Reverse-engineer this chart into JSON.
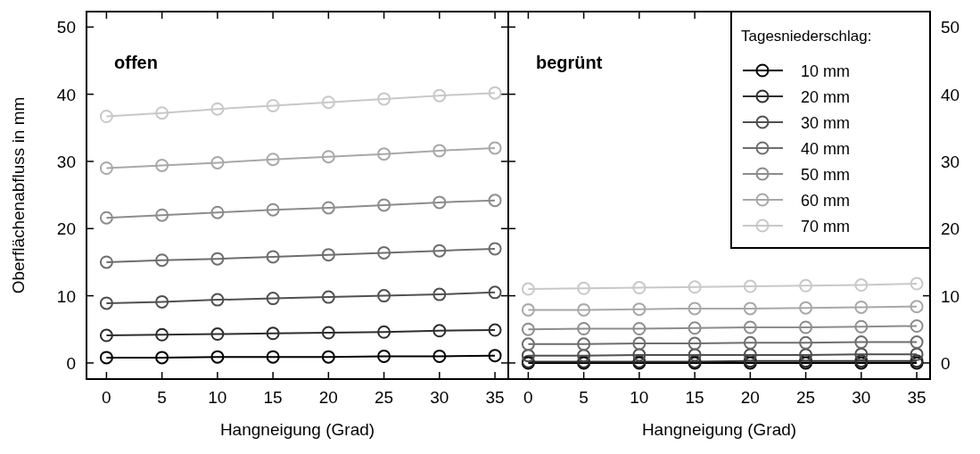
{
  "chart_data": [
    {
      "type": "line",
      "title": "offen",
      "xlabel": "Hangneigung (Grad)",
      "ylabel": "Oberflächenabfluss in mm",
      "x": [
        0,
        5,
        10,
        15,
        20,
        25,
        30,
        35
      ],
      "xlim": [
        -1.8,
        36.2
      ],
      "xticks": [
        0,
        5,
        10,
        15,
        20,
        25,
        30,
        35
      ],
      "ylim": [
        -2.4,
        52.3
      ],
      "yticks": [
        0,
        10,
        20,
        30,
        40,
        50
      ],
      "marker": "circle",
      "line_style": "solid",
      "legend": false,
      "series": [
        {
          "color": "#000000",
          "values": [
            0.8,
            0.8,
            0.9,
            0.9,
            0.9,
            1.0,
            1.0,
            1.1
          ]
        },
        {
          "color": "#2e2e2e",
          "values": [
            4.1,
            4.2,
            4.3,
            4.4,
            4.5,
            4.6,
            4.8,
            4.9
          ]
        },
        {
          "color": "#505050",
          "values": [
            8.9,
            9.1,
            9.4,
            9.6,
            9.8,
            10.0,
            10.2,
            10.5
          ]
        },
        {
          "color": "#6e6e6e",
          "values": [
            15.0,
            15.3,
            15.5,
            15.8,
            16.1,
            16.4,
            16.7,
            17.0
          ]
        },
        {
          "color": "#8c8c8c",
          "values": [
            21.6,
            22.0,
            22.4,
            22.8,
            23.1,
            23.5,
            23.9,
            24.2
          ]
        },
        {
          "color": "#a8a8a8",
          "values": [
            29.0,
            29.4,
            29.8,
            30.3,
            30.7,
            31.1,
            31.6,
            32.0
          ]
        },
        {
          "color": "#c8c8c8",
          "values": [
            36.7,
            37.2,
            37.8,
            38.3,
            38.8,
            39.3,
            39.8,
            40.2
          ]
        }
      ]
    },
    {
      "type": "line",
      "title": "begrünt",
      "xlabel": "Hangneigung (Grad)",
      "legend_title": "Tagesniederschlag:",
      "x": [
        0,
        5,
        10,
        15,
        20,
        25,
        30,
        35
      ],
      "xlim": [
        -1.8,
        36.2
      ],
      "xticks": [
        0,
        5,
        10,
        15,
        20,
        25,
        30,
        35
      ],
      "ylim": [
        -2.4,
        52.3
      ],
      "yticks": [
        0,
        10,
        20,
        30,
        40,
        50
      ],
      "marker": "circle",
      "line_style": "solid",
      "legend": "top right",
      "series": [
        {
          "name": "10 mm",
          "color": "#000000",
          "values": [
            0,
            0,
            0,
            0,
            0,
            0,
            0,
            0
          ]
        },
        {
          "name": "20 mm",
          "color": "#2e2e2e",
          "values": [
            0.2,
            0.2,
            0.2,
            0.2,
            0.3,
            0.3,
            0.3,
            0.3
          ]
        },
        {
          "name": "30 mm",
          "color": "#505050",
          "values": [
            1.1,
            1.1,
            1.2,
            1.2,
            1.2,
            1.2,
            1.3,
            1.3
          ]
        },
        {
          "name": "40 mm",
          "color": "#6e6e6e",
          "values": [
            2.8,
            2.8,
            2.9,
            2.9,
            3.0,
            3.0,
            3.1,
            3.1
          ]
        },
        {
          "name": "50 mm",
          "color": "#8c8c8c",
          "values": [
            5.0,
            5.1,
            5.1,
            5.2,
            5.3,
            5.3,
            5.4,
            5.5
          ]
        },
        {
          "name": "60 mm",
          "color": "#a8a8a8",
          "values": [
            7.9,
            7.9,
            8.0,
            8.1,
            8.1,
            8.2,
            8.3,
            8.4
          ]
        },
        {
          "name": "70 mm",
          "color": "#c8c8c8",
          "values": [
            11.0,
            11.1,
            11.2,
            11.3,
            11.4,
            11.5,
            11.6,
            11.8
          ]
        }
      ]
    }
  ]
}
